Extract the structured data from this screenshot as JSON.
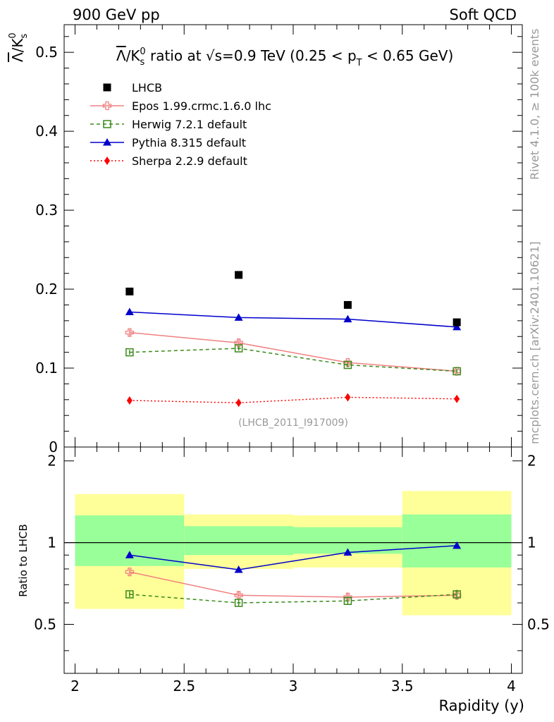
{
  "header": {
    "left": "900 GeV pp",
    "right": "Soft QCD"
  },
  "side": {
    "rivet": "Rivet 4.1.0, ≥ 100k events",
    "mcplots": "mcplots.cern.ch [arXiv:2401.10621]"
  },
  "chart_data": {
    "type": "scatter",
    "title_parts": {
      "prefix": "Λ",
      "middle": "/K",
      "sub": "s",
      "sup": "0",
      "rest": " ratio at √s=0.9 TeV (0.25 < p",
      "sub2": "T",
      "end": " < 0.65 GeV)"
    },
    "ylabel_parts": {
      "lambda": "Λ",
      "slash": "/K",
      "sub": "s",
      "sup": "0"
    },
    "watermark": "(LHCB_2011_I917009)",
    "xlabel": "Rapidity (y)",
    "ratio_ylabel": "Ratio to LHCB",
    "xlim": [
      1.95,
      4.05
    ],
    "ylim": [
      0,
      0.535
    ],
    "ratio_ylim": [
      0.33,
      2.25
    ],
    "xticks": [
      2,
      2.5,
      3,
      3.5,
      4
    ],
    "xtick_labels": [
      "2",
      "2.5",
      "3",
      "3.5",
      "4"
    ],
    "yticks": [
      0,
      0.1,
      0.2,
      0.3,
      0.4,
      0.5
    ],
    "ytick_labels": [
      "0",
      "0.1",
      "0.2",
      "0.3",
      "0.4",
      "0.5"
    ],
    "ratio_yticks": [
      0.5,
      1,
      2
    ],
    "ratio_ytick_labels": [
      "0.5",
      "1",
      "2"
    ],
    "x": [
      2.25,
      2.75,
      3.25,
      3.75
    ],
    "bins": [
      [
        2.0,
        2.5
      ],
      [
        2.5,
        3.0
      ],
      [
        3.0,
        3.5
      ],
      [
        3.5,
        4.0
      ]
    ],
    "data": {
      "name": "LHCB",
      "values": [
        0.197,
        0.218,
        0.18,
        0.158
      ]
    },
    "bands": {
      "inner": [
        [
          0.82,
          1.26
        ],
        [
          0.9,
          1.15
        ],
        [
          0.91,
          1.14
        ],
        [
          0.81,
          1.27
        ]
      ],
      "outer": [
        [
          0.57,
          1.51
        ],
        [
          0.8,
          1.27
        ],
        [
          0.81,
          1.26
        ],
        [
          0.54,
          1.55
        ]
      ]
    },
    "series": [
      {
        "name": "Epos 1.99.crmc.1.6.0 lhc",
        "color": "#f08080",
        "dash": "",
        "marker": "cross-open",
        "values": [
          0.145,
          0.132,
          0.107,
          0.096
        ],
        "errors": [
          0.004,
          0.004,
          0.003,
          0.003
        ],
        "ratio": [
          0.78,
          0.64,
          0.63,
          0.64
        ],
        "ratio_err": [
          0.02,
          0.02,
          0.025,
          0.025
        ]
      },
      {
        "name": "Herwig 7.2.1 default",
        "color": "#3a8a1a",
        "dash": "5,4",
        "marker": "square-open",
        "values": [
          0.12,
          0.125,
          0.104,
          0.096
        ],
        "errors": [
          0.003,
          0.003,
          0.003,
          0.003
        ],
        "ratio": [
          0.645,
          0.6,
          0.61,
          0.645
        ],
        "ratio_err": [
          0.015,
          0.015,
          0.02,
          0.025
        ]
      },
      {
        "name": "Pythia 8.315 default",
        "color": "#0000cc",
        "dash": "",
        "marker": "triangle",
        "values": [
          0.171,
          0.164,
          0.162,
          0.152
        ],
        "errors": [
          0.004,
          0.004,
          0.004,
          0.004
        ],
        "ratio": [
          0.9,
          0.795,
          0.92,
          0.975
        ],
        "ratio_err": [
          0.02,
          0.02,
          0.025,
          0.025
        ]
      },
      {
        "name": "Sherpa 2.2.9 default",
        "color": "#ff0000",
        "dash": "2,3",
        "marker": "diamond",
        "values": [
          0.059,
          0.056,
          0.063,
          0.061
        ],
        "errors": [
          0.001,
          0.001,
          0.001,
          0.001
        ]
      }
    ],
    "colors": {
      "inner_band": "#99ff99",
      "outer_band": "#ffff99",
      "data": "#000000"
    }
  }
}
